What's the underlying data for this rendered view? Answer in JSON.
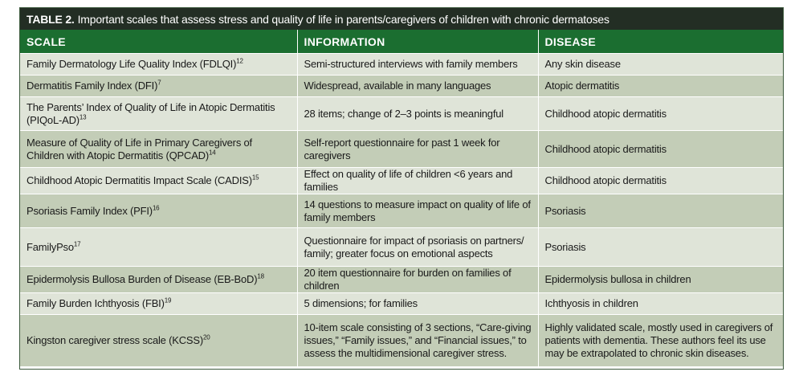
{
  "table": {
    "title_label": "TABLE 2.",
    "title_text": "Important scales that assess stress and quality of life in parents/caregivers of children with chronic dermatoses",
    "headers": [
      "SCALE",
      "INFORMATION",
      "DISEASE"
    ],
    "rows": [
      {
        "scale": "Family Dermatology Life Quality Index (FDLQI)",
        "ref": "12",
        "information": "Semi-structured interviews with family members",
        "disease": "Any skin disease"
      },
      {
        "scale": "Dermatitis Family Index (DFI)",
        "ref": "7",
        "information": "Widespread, available in many languages",
        "disease": "Atopic dermatitis"
      },
      {
        "scale": "The Parents’ Index of Quality of Life in Atopic Dermatitis (PIQoL-AD)",
        "ref": "13",
        "information": "28 items; change of 2–3 points is meaningful",
        "disease": "Childhood atopic dermatitis"
      },
      {
        "scale": "Measure of Quality of Life in Primary Caregivers of Children with Atopic Dermatitis (QPCAD)",
        "ref": "14",
        "information": "Self-report questionnaire for past 1 week for caregivers",
        "disease": "Childhood atopic dermatitis"
      },
      {
        "scale": "Childhood Atopic Dermatitis Impact Scale (CADIS)",
        "ref": "15",
        "information": "Effect on quality of life of children <6 years and families",
        "disease": "Childhood atopic dermatitis"
      },
      {
        "scale": "Psoriasis Family Index (PFI)",
        "ref": "16",
        "information": "14 questions to measure impact on quality of life of family members",
        "disease": "Psoriasis"
      },
      {
        "scale": "FamilyPso",
        "ref": "17",
        "information": "Questionnaire for impact of psoriasis on partners/ family; greater focus on emotional aspects",
        "disease": "Psoriasis"
      },
      {
        "scale": "Epidermolysis Bullosa Burden of Disease (EB-BoD)",
        "ref": "18",
        "information": "20 item questionnaire for burden on families of children",
        "disease": "Epidermolysis bullosa in children"
      },
      {
        "scale": "Family Burden Ichthyosis (FBI)",
        "ref": "19",
        "information": "5 dimensions; for families",
        "disease": "Ichthyosis in children"
      },
      {
        "scale": "Kingston caregiver stress scale (KCSS)",
        "ref": "20",
        "information": "10-item scale consisting of 3 sections, “Care-giving issues,” “Family issues,” and “Financial issues,” to assess the multidimensional caregiver stress.",
        "disease": "Highly validated scale, mostly used in caregivers of patients with dementia. These authors feel its use may be extrapolated to chronic skin diseases."
      }
    ]
  }
}
